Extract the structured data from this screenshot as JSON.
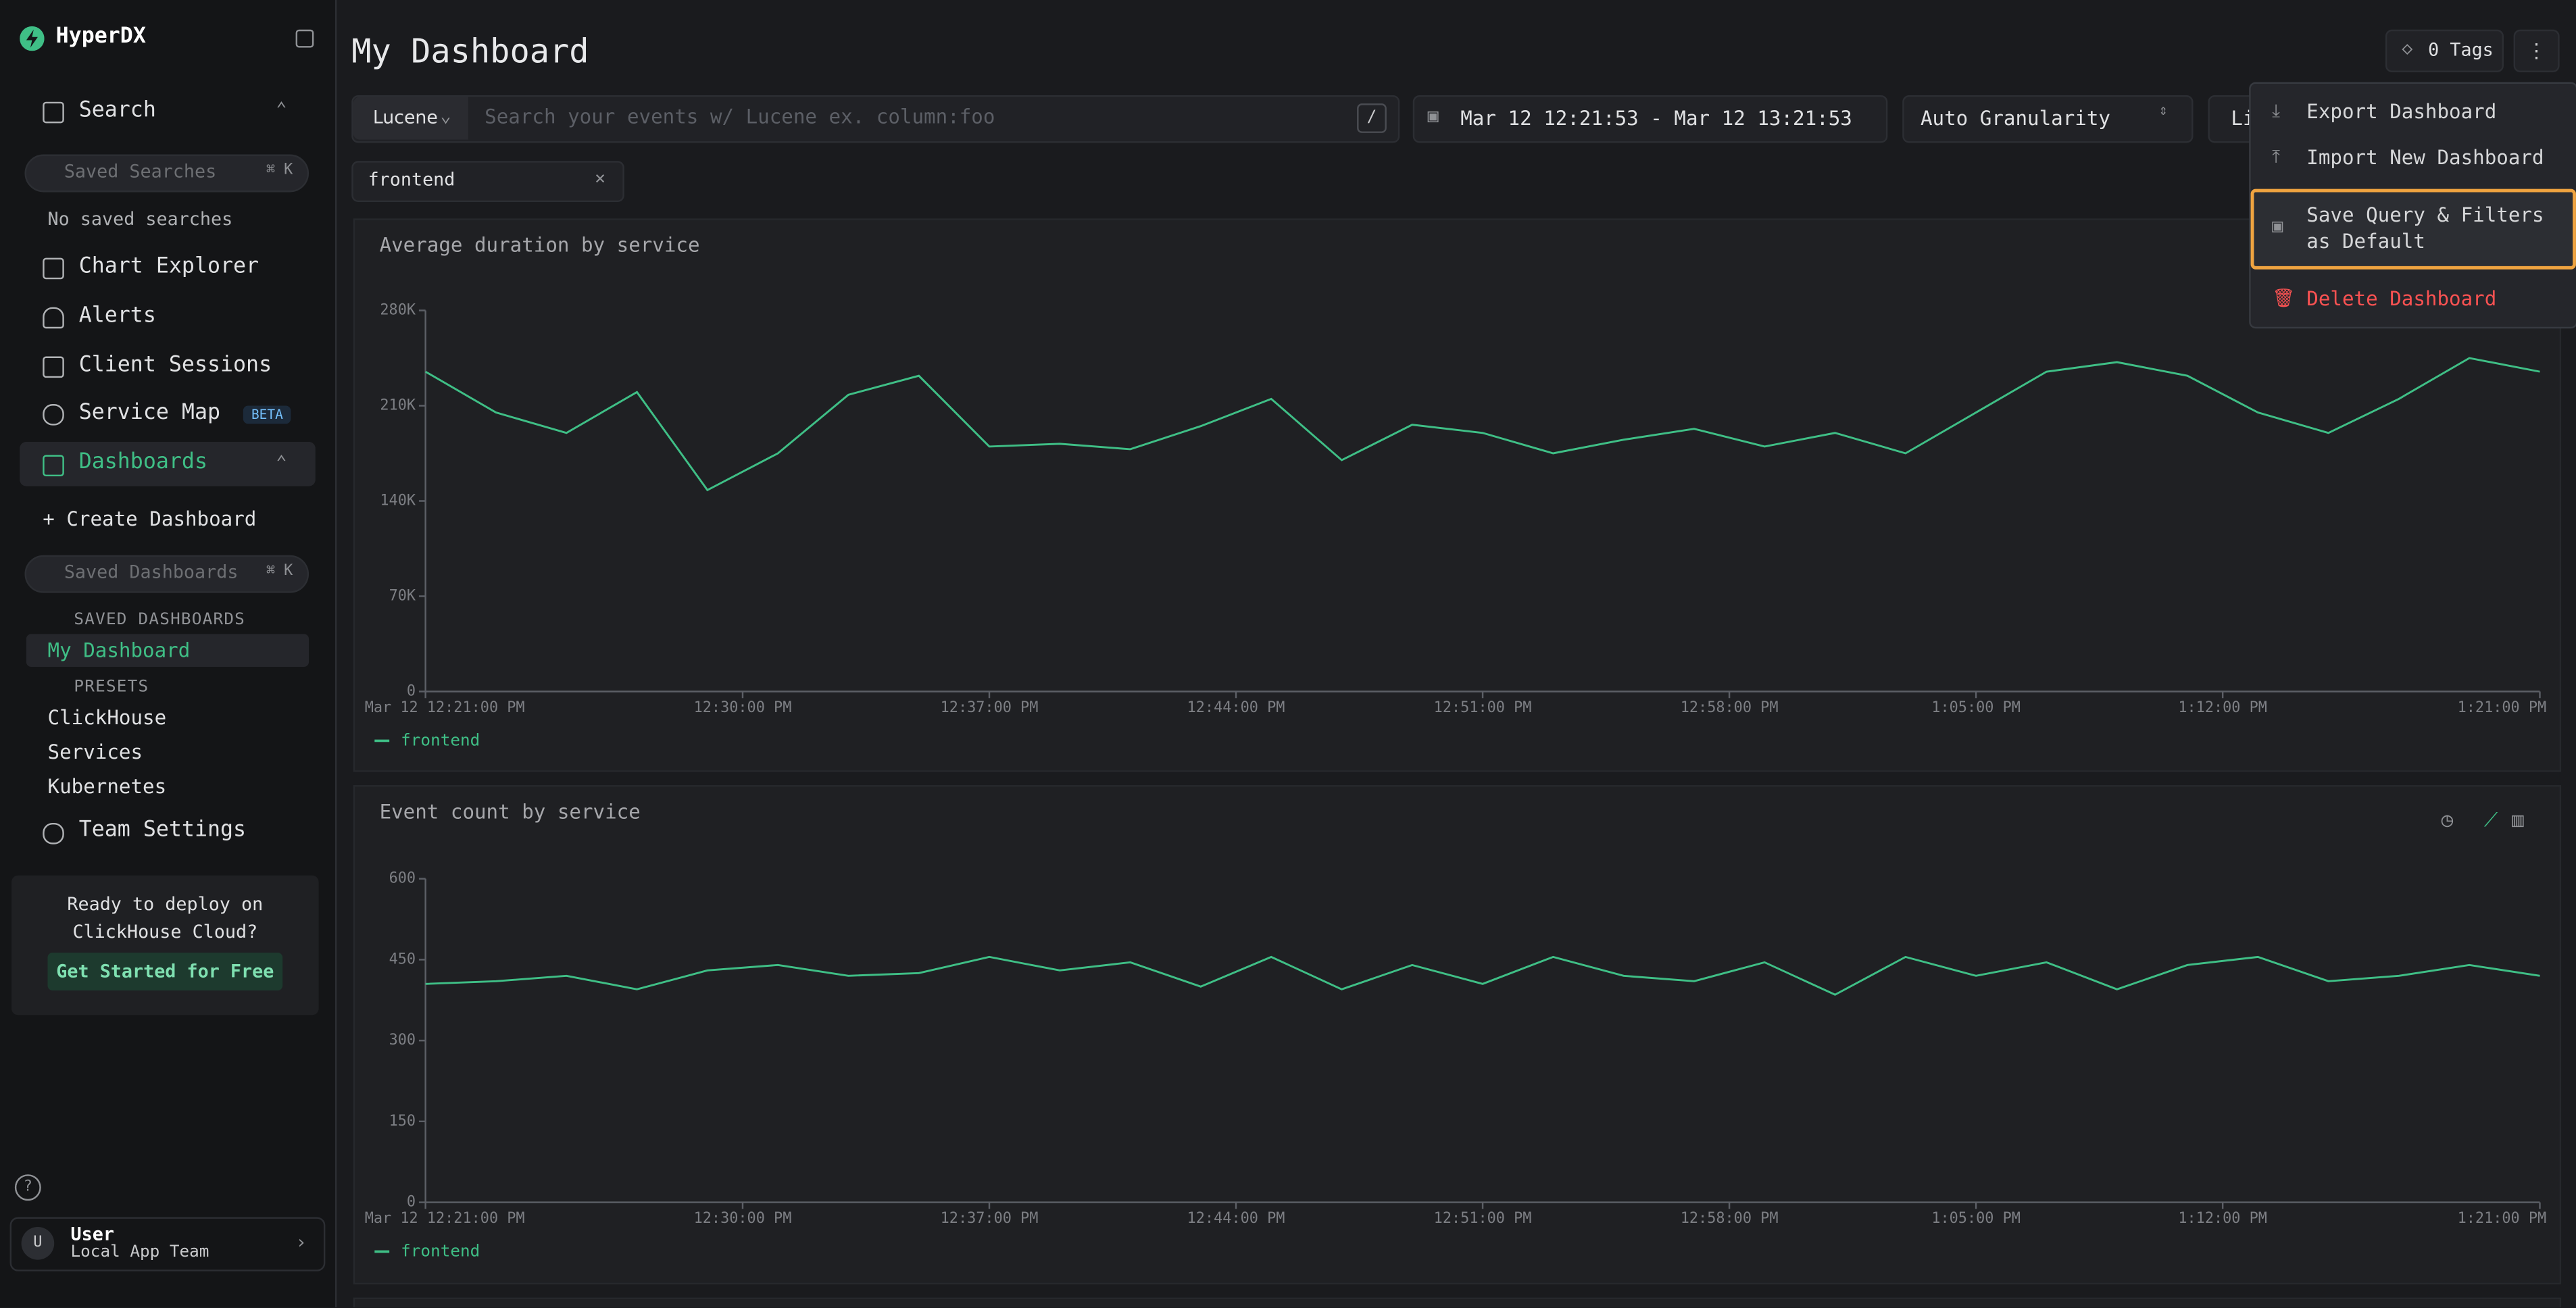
{
  "sidebar": {
    "brand": "HyperDX",
    "search": "Search",
    "saved_searches_placeholder": "Saved Searches",
    "search_shortcut": "⌘ K",
    "no_saved_searches": "No saved searches",
    "chart_explorer": "Chart Explorer",
    "alerts": "Alerts",
    "client_sessions": "Client Sessions",
    "service_map": "Service Map",
    "beta": "BETA",
    "dashboards": "Dashboards",
    "create_dashboard": "+ Create Dashboard",
    "saved_dashboards_placeholder": "Saved Dashboards",
    "dashboards_shortcut": "⌘ K",
    "saved_dashboards_header": "SAVED DASHBOARDS",
    "my_dashboard": "My Dashboard",
    "presets_header": "PRESETS",
    "presets": [
      "ClickHouse",
      "Services",
      "Kubernetes"
    ],
    "team_settings": "Team Settings",
    "promo": "Ready to deploy on ClickHouse Cloud?",
    "promo_button": "Get Started for Free",
    "avatar": "U",
    "user_name": "User",
    "user_team": "Local App Team"
  },
  "header": {
    "title": "My Dashboard",
    "tags": "0 Tags"
  },
  "toolbar": {
    "language": "Lucene",
    "search_placeholder": "Search your events w/ Lucene ex. column:foo",
    "slash": "/",
    "time_range": "Mar 12 12:21:53 - Mar 12 13:21:53",
    "granularity": "Auto Granularity",
    "live": "Li"
  },
  "filters": [
    "frontend"
  ],
  "menu": {
    "items": [
      "Export Dashboard",
      "Import New Dashboard",
      "Save Query & Filters as Default",
      "Delete Dashboard"
    ]
  },
  "charts": [
    {
      "type": "line",
      "title": "Average duration by service",
      "xlim": [
        "12:21:00",
        "13:21:00"
      ],
      "xticks": [
        {
          "value": "12:21:00",
          "label": "Mar 12 12:21:00 PM"
        },
        {
          "value": "12:30:00",
          "label": "12:30:00 PM"
        },
        {
          "value": "12:37:00",
          "label": "12:37:00 PM"
        },
        {
          "value": "12:44:00",
          "label": "12:44:00 PM"
        },
        {
          "value": "12:51:00",
          "label": "12:51:00 PM"
        },
        {
          "value": "12:58:00",
          "label": "12:58:00 PM"
        },
        {
          "value": "13:05:00",
          "label": "1:05:00 PM"
        },
        {
          "value": "13:12:00",
          "label": "1:12:00 PM"
        },
        {
          "value": "13:21:00",
          "label": "1:21:00 PM"
        }
      ],
      "ylim": [
        0,
        280000
      ],
      "yticks": [
        0,
        {
          "value": 70000,
          "label": "70K"
        },
        {
          "value": 140000,
          "label": "140K"
        },
        {
          "value": 210000,
          "label": "210K"
        },
        {
          "value": 280000,
          "label": "280K"
        }
      ],
      "x": [
        "12:21:00",
        "12:23:00",
        "12:25:00",
        "12:27:00",
        "12:29:00",
        "12:31:00",
        "12:33:00",
        "12:35:00",
        "12:37:00",
        "12:39:00",
        "12:41:00",
        "12:43:00",
        "12:45:00",
        "12:47:00",
        "12:49:00",
        "12:51:00",
        "12:53:00",
        "12:55:00",
        "12:57:00",
        "12:59:00",
        "13:01:00",
        "13:03:00",
        "13:05:00",
        "13:07:00",
        "13:09:00",
        "13:11:00",
        "13:13:00",
        "13:15:00",
        "13:17:00",
        "13:19:00",
        "13:21:00"
      ],
      "series": [
        {
          "name": "frontend",
          "color": "#3fbf86",
          "values": [
            235000,
            205000,
            190000,
            220000,
            148000,
            175000,
            218000,
            232000,
            180000,
            182000,
            178000,
            195000,
            215000,
            170000,
            196000,
            190000,
            175000,
            185000,
            193000,
            180000,
            190000,
            175000,
            205000,
            235000,
            242000,
            232000,
            205000,
            190000,
            215000,
            245000,
            235000
          ]
        }
      ]
    },
    {
      "type": "line",
      "title": "Event count by service",
      "xlim": [
        "12:21:00",
        "13:21:00"
      ],
      "xticks": [
        {
          "value": "12:21:00",
          "label": "Mar 12 12:21:00 PM"
        },
        {
          "value": "12:30:00",
          "label": "12:30:00 PM"
        },
        {
          "value": "12:37:00",
          "label": "12:37:00 PM"
        },
        {
          "value": "12:44:00",
          "label": "12:44:00 PM"
        },
        {
          "value": "12:51:00",
          "label": "12:51:00 PM"
        },
        {
          "value": "12:58:00",
          "label": "12:58:00 PM"
        },
        {
          "value": "13:05:00",
          "label": "1:05:00 PM"
        },
        {
          "value": "13:12:00",
          "label": "1:12:00 PM"
        },
        {
          "value": "13:21:00",
          "label": "1:21:00 PM"
        }
      ],
      "ylim": [
        0,
        600
      ],
      "yticks": [
        0,
        150,
        300,
        450,
        600
      ],
      "x": [
        "12:21:00",
        "12:23:00",
        "12:25:00",
        "12:27:00",
        "12:29:00",
        "12:31:00",
        "12:33:00",
        "12:35:00",
        "12:37:00",
        "12:39:00",
        "12:41:00",
        "12:43:00",
        "12:45:00",
        "12:47:00",
        "12:49:00",
        "12:51:00",
        "12:53:00",
        "12:55:00",
        "12:57:00",
        "12:59:00",
        "13:01:00",
        "13:03:00",
        "13:05:00",
        "13:07:00",
        "13:09:00",
        "13:11:00",
        "13:13:00",
        "13:15:00",
        "13:17:00",
        "13:19:00",
        "13:21:00"
      ],
      "series": [
        {
          "name": "frontend",
          "color": "#3fbf86",
          "values": [
            405,
            410,
            420,
            395,
            430,
            440,
            420,
            425,
            455,
            430,
            445,
            400,
            455,
            395,
            440,
            405,
            455,
            420,
            410,
            445,
            385,
            455,
            420,
            445,
            395,
            440,
            455,
            410,
            420,
            440,
            420
          ]
        }
      ]
    }
  ]
}
